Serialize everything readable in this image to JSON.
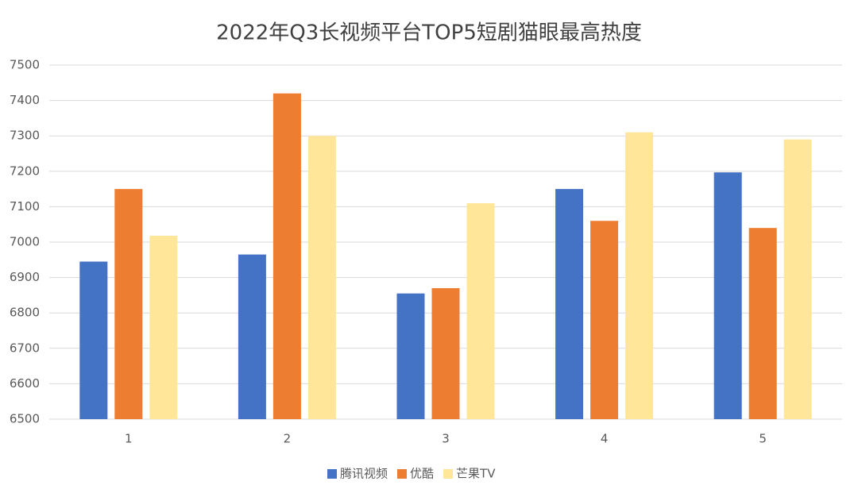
{
  "chart_data": {
    "type": "bar",
    "title": "2022年Q3长视频平台TOP5短剧猫眼最高热度",
    "categories": [
      "1",
      "2",
      "3",
      "4",
      "5"
    ],
    "series": [
      {
        "name": "腾讯视频",
        "color": "#4472c4",
        "values": [
          6945,
          6965,
          6855,
          7150,
          7197
        ]
      },
      {
        "name": "优酷",
        "color": "#ed7d31",
        "values": [
          7150,
          7420,
          6870,
          7060,
          7040
        ]
      },
      {
        "name": "芒果TV",
        "color": "#ffe699",
        "values": [
          7018,
          7300,
          7110,
          7310,
          7290
        ]
      }
    ],
    "ylim": [
      6500,
      7500
    ],
    "yticks": [
      6500,
      6600,
      6700,
      6800,
      6900,
      7000,
      7100,
      7200,
      7300,
      7400,
      7500
    ],
    "grid": true,
    "legend": "bottom"
  }
}
